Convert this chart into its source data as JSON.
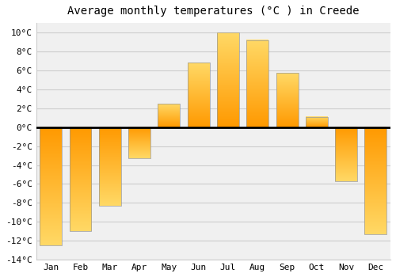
{
  "title": "Average monthly temperatures (°C ) in Creede",
  "months": [
    "Jan",
    "Feb",
    "Mar",
    "Apr",
    "May",
    "Jun",
    "Jul",
    "Aug",
    "Sep",
    "Oct",
    "Nov",
    "Dec"
  ],
  "values": [
    -12.5,
    -11.0,
    -8.3,
    -3.3,
    2.5,
    6.8,
    10.0,
    9.2,
    5.7,
    1.1,
    -5.7,
    -11.3
  ],
  "bar_color_top": "#FFD966",
  "bar_color_bottom": "#FF9900",
  "bar_edge_color": "#999999",
  "bar_edge_width": 0.5,
  "background_color": "#FFFFFF",
  "plot_bg_color": "#F0F0F0",
  "grid_color": "#CCCCCC",
  "zero_line_color": "#000000",
  "ylim": [
    -14,
    11
  ],
  "yticks": [
    -14,
    -12,
    -10,
    -8,
    -6,
    -4,
    -2,
    0,
    2,
    4,
    6,
    8,
    10
  ],
  "title_fontsize": 10,
  "tick_fontsize": 8,
  "title_font": "monospace",
  "axis_font": "monospace"
}
